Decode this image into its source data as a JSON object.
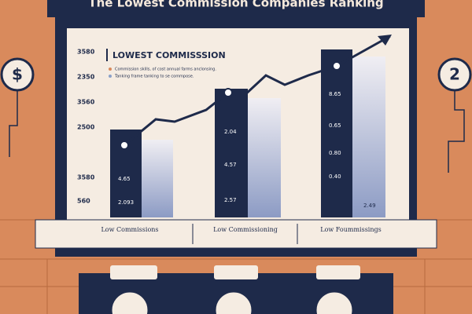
{
  "header": {
    "title": "The Lowest Commission Companies Ranking"
  },
  "panel": {
    "heading": "LOWEST COMMISSSION",
    "notes": [
      "Commission skills, of cost annual farms anclonsing.",
      "Tanking frame tanking to se commpose."
    ]
  },
  "axis_labels": [
    "3580",
    "2350",
    "3560",
    "2500",
    "3580",
    "560"
  ],
  "bar_labels": [
    "4.65",
    "2.093",
    "2.04",
    "4.57",
    "2.57",
    "8.65",
    "0.65",
    "0.80",
    "0.40",
    "2.49"
  ],
  "footer_labels": [
    "Low Commissions",
    "Low Commissioning",
    "Low Foummissings"
  ],
  "side_icons": [
    "$",
    "2"
  ]
}
